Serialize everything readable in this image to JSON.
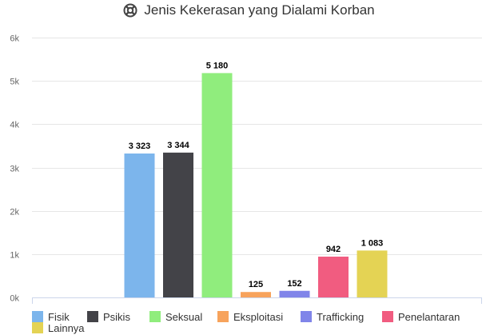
{
  "chart_data": {
    "type": "bar",
    "title": "Jenis Kekerasan yang Dialami Korban",
    "title_icon": "life-ring-icon",
    "categories": [
      "Fisik",
      "Psikis",
      "Seksual",
      "Eksploitasi",
      "Trafficking",
      "Penelantaran",
      "Lainnya"
    ],
    "values": [
      3323,
      3344,
      5180,
      125,
      152,
      942,
      1083
    ],
    "data_labels": [
      "3 323",
      "3 344",
      "5 180",
      "125",
      "152",
      "942",
      "1 083"
    ],
    "colors": [
      "#7cb5ec",
      "#434348",
      "#90ed7d",
      "#f7a35c",
      "#8085e9",
      "#f15c80",
      "#e4d354"
    ],
    "y_ticks": [
      0,
      1000,
      2000,
      3000,
      4000,
      5000,
      6000
    ],
    "y_tick_labels": [
      "0k",
      "1k",
      "2k",
      "3k",
      "4k",
      "5k",
      "6k"
    ],
    "ylim": [
      0,
      6000
    ],
    "grid": true,
    "legend_position": "bottom",
    "xlabel": "",
    "ylabel": ""
  }
}
